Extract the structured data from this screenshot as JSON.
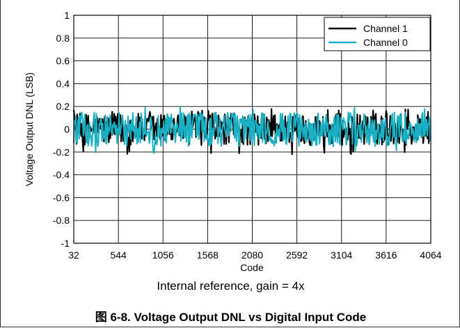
{
  "chart_data": {
    "type": "line",
    "title": "",
    "xlabel": "Code",
    "ylabel": "Voltage Output DNL (LSB)",
    "xlim": [
      32,
      4064
    ],
    "ylim": [
      -1,
      1
    ],
    "x_ticks": [
      "32",
      "544",
      "1056",
      "1568",
      "2080",
      "2592",
      "3104",
      "3616",
      "4064"
    ],
    "y_ticks": [
      "1",
      "0.8",
      "0.6",
      "0.4",
      "0.2",
      "0",
      "-0.2",
      "-0.4",
      "-0.6",
      "-0.8",
      "-1"
    ],
    "grid": true,
    "legend_position": "top-right",
    "series": [
      {
        "name": "Channel 1",
        "color": "#000000",
        "amplitude_lsb": 0.14,
        "min_lsb": -0.22,
        "max_lsb": 0.18
      },
      {
        "name": "Channel 0",
        "color": "#1ab0c4",
        "amplitude_lsb": 0.15,
        "min_lsb": -0.21,
        "max_lsb": 0.2
      }
    ],
    "note": "Internal reference, gain = 4x"
  },
  "figure_caption": "图 6-8. Voltage Output DNL vs Digital Input Code"
}
